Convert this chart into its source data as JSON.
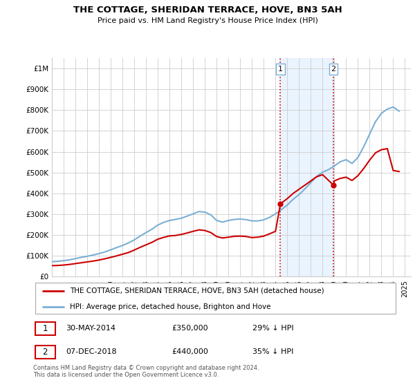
{
  "title": "THE COTTAGE, SHERIDAN TERRACE, HOVE, BN3 5AH",
  "subtitle": "Price paid vs. HM Land Registry's House Price Index (HPI)",
  "legend_line1": "THE COTTAGE, SHERIDAN TERRACE, HOVE, BN3 5AH (detached house)",
  "legend_line2": "HPI: Average price, detached house, Brighton and Hove",
  "annotation1_label": "1",
  "annotation1_date": "30-MAY-2014",
  "annotation1_price": "£350,000",
  "annotation1_hpi": "29% ↓ HPI",
  "annotation2_label": "2",
  "annotation2_date": "07-DEC-2018",
  "annotation2_price": "£440,000",
  "annotation2_hpi": "35% ↓ HPI",
  "footer1": "Contains HM Land Registry data © Crown copyright and database right 2024.",
  "footer2": "This data is licensed under the Open Government Licence v3.0.",
  "red_color": "#cc0000",
  "blue_color": "#7bafd4",
  "vline_color": "#cc0000",
  "bg_fill_color": "#ddeeff",
  "ylim": [
    0,
    1050000
  ],
  "yticks": [
    0,
    100000,
    200000,
    300000,
    400000,
    500000,
    600000,
    700000,
    800000,
    900000,
    1000000
  ],
  "ytick_labels": [
    "£0",
    "£100K",
    "£200K",
    "£300K",
    "£400K",
    "£500K",
    "£600K",
    "£700K",
    "£800K",
    "£900K",
    "£1M"
  ],
  "sale1_x": 2014.42,
  "sale1_y": 350000,
  "sale2_x": 2018.92,
  "sale2_y": 440000,
  "xlim_left": 1995,
  "xlim_right": 2025.5,
  "hpi_x": [
    1995,
    1995.5,
    1996,
    1996.5,
    1997,
    1997.5,
    1998,
    1998.5,
    1999,
    1999.5,
    2000,
    2000.5,
    2001,
    2001.5,
    2002,
    2002.5,
    2003,
    2003.5,
    2004,
    2004.5,
    2005,
    2005.5,
    2006,
    2006.5,
    2007,
    2007.5,
    2008,
    2008.5,
    2009,
    2009.5,
    2010,
    2010.5,
    2011,
    2011.5,
    2012,
    2012.5,
    2013,
    2013.5,
    2014,
    2014.5,
    2015,
    2015.5,
    2016,
    2016.5,
    2017,
    2017.5,
    2018,
    2018.5,
    2019,
    2019.5,
    2020,
    2020.5,
    2021,
    2021.5,
    2022,
    2022.5,
    2023,
    2023.5,
    2024,
    2024.5
  ],
  "hpi_y": [
    72000,
    74000,
    77000,
    81000,
    87000,
    93000,
    98000,
    104000,
    111000,
    119000,
    129000,
    140000,
    150000,
    162000,
    177000,
    195000,
    212000,
    228000,
    248000,
    261000,
    270000,
    275000,
    281000,
    291000,
    302000,
    313000,
    310000,
    297000,
    270000,
    262000,
    270000,
    275000,
    277000,
    274000,
    268000,
    268000,
    273000,
    285000,
    302000,
    322000,
    344000,
    372000,
    394000,
    422000,
    452000,
    482000,
    502000,
    514000,
    532000,
    552000,
    562000,
    544000,
    572000,
    625000,
    685000,
    745000,
    785000,
    805000,
    815000,
    795000
  ],
  "price_x": [
    1995,
    1995.5,
    1996,
    1996.5,
    1997,
    1997.5,
    1998,
    1998.5,
    1999,
    1999.5,
    2000,
    2000.5,
    2001,
    2001.5,
    2002,
    2002.5,
    2003,
    2003.5,
    2004,
    2004.5,
    2005,
    2005.5,
    2006,
    2006.5,
    2007,
    2007.5,
    2008,
    2008.5,
    2009,
    2009.5,
    2010,
    2010.5,
    2011,
    2011.5,
    2012,
    2012.5,
    2013,
    2013.5,
    2014,
    2014.42,
    2015,
    2015.5,
    2016,
    2016.5,
    2017,
    2017.5,
    2018,
    2018.92,
    2019,
    2019.5,
    2020,
    2020.5,
    2021,
    2021.5,
    2022,
    2022.5,
    2023,
    2023.5,
    2024,
    2024.5
  ],
  "price_y": [
    53000,
    54000,
    56000,
    59000,
    63000,
    67000,
    71000,
    75000,
    80000,
    86000,
    93000,
    100000,
    108000,
    116000,
    128000,
    141000,
    153000,
    165000,
    180000,
    189000,
    196000,
    198000,
    203000,
    210000,
    218000,
    225000,
    222000,
    212000,
    193000,
    186000,
    190000,
    194000,
    195000,
    193000,
    188000,
    190000,
    195000,
    206000,
    218000,
    350000,
    375000,
    400000,
    420000,
    440000,
    460000,
    480000,
    490000,
    440000,
    460000,
    472000,
    478000,
    462000,
    485000,
    520000,
    560000,
    595000,
    610000,
    615000,
    510000,
    505000
  ]
}
